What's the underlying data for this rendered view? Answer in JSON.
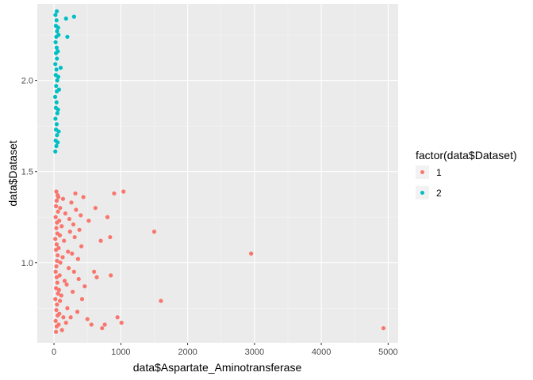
{
  "chart_data": {
    "type": "scatter",
    "title": "",
    "xlabel": "data$Aspartate_Aminotransferase",
    "ylabel": "data$Dataset",
    "xlim": [
      -250,
      5150
    ],
    "ylim": [
      0.56,
      2.42
    ],
    "x_ticks": [
      0,
      1000,
      2000,
      3000,
      4000,
      5000
    ],
    "x_tick_labels": [
      "0",
      "1000",
      "2000",
      "3000",
      "4000",
      "5000"
    ],
    "y_ticks": [
      1.0,
      1.5,
      2.0
    ],
    "y_tick_labels": [
      "1.0",
      "1.5",
      "2.0"
    ],
    "grid": true,
    "legend": {
      "title": "factor(data$Dataset)",
      "placement": "right"
    },
    "series": [
      {
        "name": "1",
        "color": "#F8766D",
        "points": [
          [
            30,
            0.62
          ],
          [
            40,
            0.65
          ],
          [
            25,
            0.68
          ],
          [
            55,
            0.71
          ],
          [
            35,
            0.74
          ],
          [
            45,
            0.77
          ],
          [
            20,
            0.8
          ],
          [
            60,
            0.83
          ],
          [
            30,
            0.86
          ],
          [
            50,
            0.89
          ],
          [
            40,
            0.92
          ],
          [
            25,
            0.95
          ],
          [
            35,
            0.98
          ],
          [
            45,
            1.01
          ],
          [
            55,
            1.04
          ],
          [
            30,
            1.07
          ],
          [
            40,
            1.1
          ],
          [
            20,
            1.13
          ],
          [
            50,
            1.16
          ],
          [
            35,
            1.19
          ],
          [
            45,
            1.22
          ],
          [
            25,
            1.25
          ],
          [
            60,
            1.28
          ],
          [
            30,
            1.31
          ],
          [
            40,
            1.34
          ],
          [
            55,
            1.37
          ],
          [
            35,
            1.39
          ],
          [
            70,
            0.66
          ],
          [
            80,
            0.72
          ],
          [
            90,
            0.79
          ],
          [
            75,
            0.85
          ],
          [
            85,
            0.93
          ],
          [
            95,
            1.0
          ],
          [
            70,
            1.08
          ],
          [
            88,
            1.15
          ],
          [
            78,
            1.23
          ],
          [
            92,
            1.3
          ],
          [
            65,
            1.36
          ],
          [
            120,
            0.63
          ],
          [
            140,
            0.7
          ],
          [
            110,
            0.82
          ],
          [
            160,
            0.9
          ],
          [
            130,
            1.03
          ],
          [
            150,
            1.12
          ],
          [
            115,
            1.2
          ],
          [
            170,
            1.27
          ],
          [
            135,
            1.35
          ],
          [
            180,
            0.67
          ],
          [
            200,
            0.75
          ],
          [
            190,
            0.88
          ],
          [
            220,
            0.97
          ],
          [
            210,
            1.06
          ],
          [
            240,
            1.17
          ],
          [
            230,
            1.24
          ],
          [
            260,
            1.33
          ],
          [
            250,
            0.7
          ],
          [
            280,
            0.84
          ],
          [
            300,
            0.95
          ],
          [
            270,
            1.05
          ],
          [
            310,
            1.14
          ],
          [
            290,
            1.21
          ],
          [
            330,
            1.29
          ],
          [
            320,
            1.38
          ],
          [
            350,
            0.73
          ],
          [
            370,
            0.91
          ],
          [
            360,
            1.02
          ],
          [
            380,
            1.18
          ],
          [
            400,
            1.26
          ],
          [
            420,
            0.8
          ],
          [
            410,
            1.09
          ],
          [
            440,
            1.36
          ],
          [
            460,
            0.87
          ],
          [
            500,
            0.69
          ],
          [
            520,
            1.23
          ],
          [
            560,
            0.66
          ],
          [
            600,
            0.95
          ],
          [
            620,
            1.3
          ],
          [
            640,
            0.92
          ],
          [
            700,
            1.12
          ],
          [
            720,
            0.64
          ],
          [
            760,
            0.66
          ],
          [
            800,
            1.25
          ],
          [
            840,
            1.14
          ],
          [
            850,
            0.93
          ],
          [
            900,
            1.38
          ],
          [
            950,
            0.7
          ],
          [
            1010,
            0.67
          ],
          [
            1040,
            1.39
          ],
          [
            1500,
            1.17
          ],
          [
            1600,
            0.79
          ],
          [
            2950,
            1.05
          ],
          [
            4930,
            0.64
          ]
        ]
      },
      {
        "name": "2",
        "color": "#00BFC4",
        "points": [
          [
            20,
            1.61
          ],
          [
            35,
            1.64
          ],
          [
            25,
            1.67
          ],
          [
            45,
            1.7
          ],
          [
            30,
            1.73
          ],
          [
            40,
            1.76
          ],
          [
            22,
            1.79
          ],
          [
            50,
            1.82
          ],
          [
            28,
            1.85
          ],
          [
            38,
            1.88
          ],
          [
            18,
            1.91
          ],
          [
            42,
            1.94
          ],
          [
            32,
            1.97
          ],
          [
            48,
            2.0
          ],
          [
            26,
            2.03
          ],
          [
            36,
            2.06
          ],
          [
            20,
            2.09
          ],
          [
            44,
            2.12
          ],
          [
            30,
            2.15
          ],
          [
            40,
            2.18
          ],
          [
            24,
            2.21
          ],
          [
            34,
            2.24
          ],
          [
            46,
            2.27
          ],
          [
            28,
            2.3
          ],
          [
            38,
            2.33
          ],
          [
            22,
            2.36
          ],
          [
            42,
            2.38
          ],
          [
            55,
            1.66
          ],
          [
            60,
            1.84
          ],
          [
            65,
            2.02
          ],
          [
            58,
            2.16
          ],
          [
            62,
            2.29
          ],
          [
            70,
            1.72
          ],
          [
            75,
            1.95
          ],
          [
            68,
            2.25
          ],
          [
            100,
            2.07
          ],
          [
            180,
            2.34
          ],
          [
            200,
            2.24
          ],
          [
            300,
            2.35
          ]
        ]
      }
    ]
  }
}
